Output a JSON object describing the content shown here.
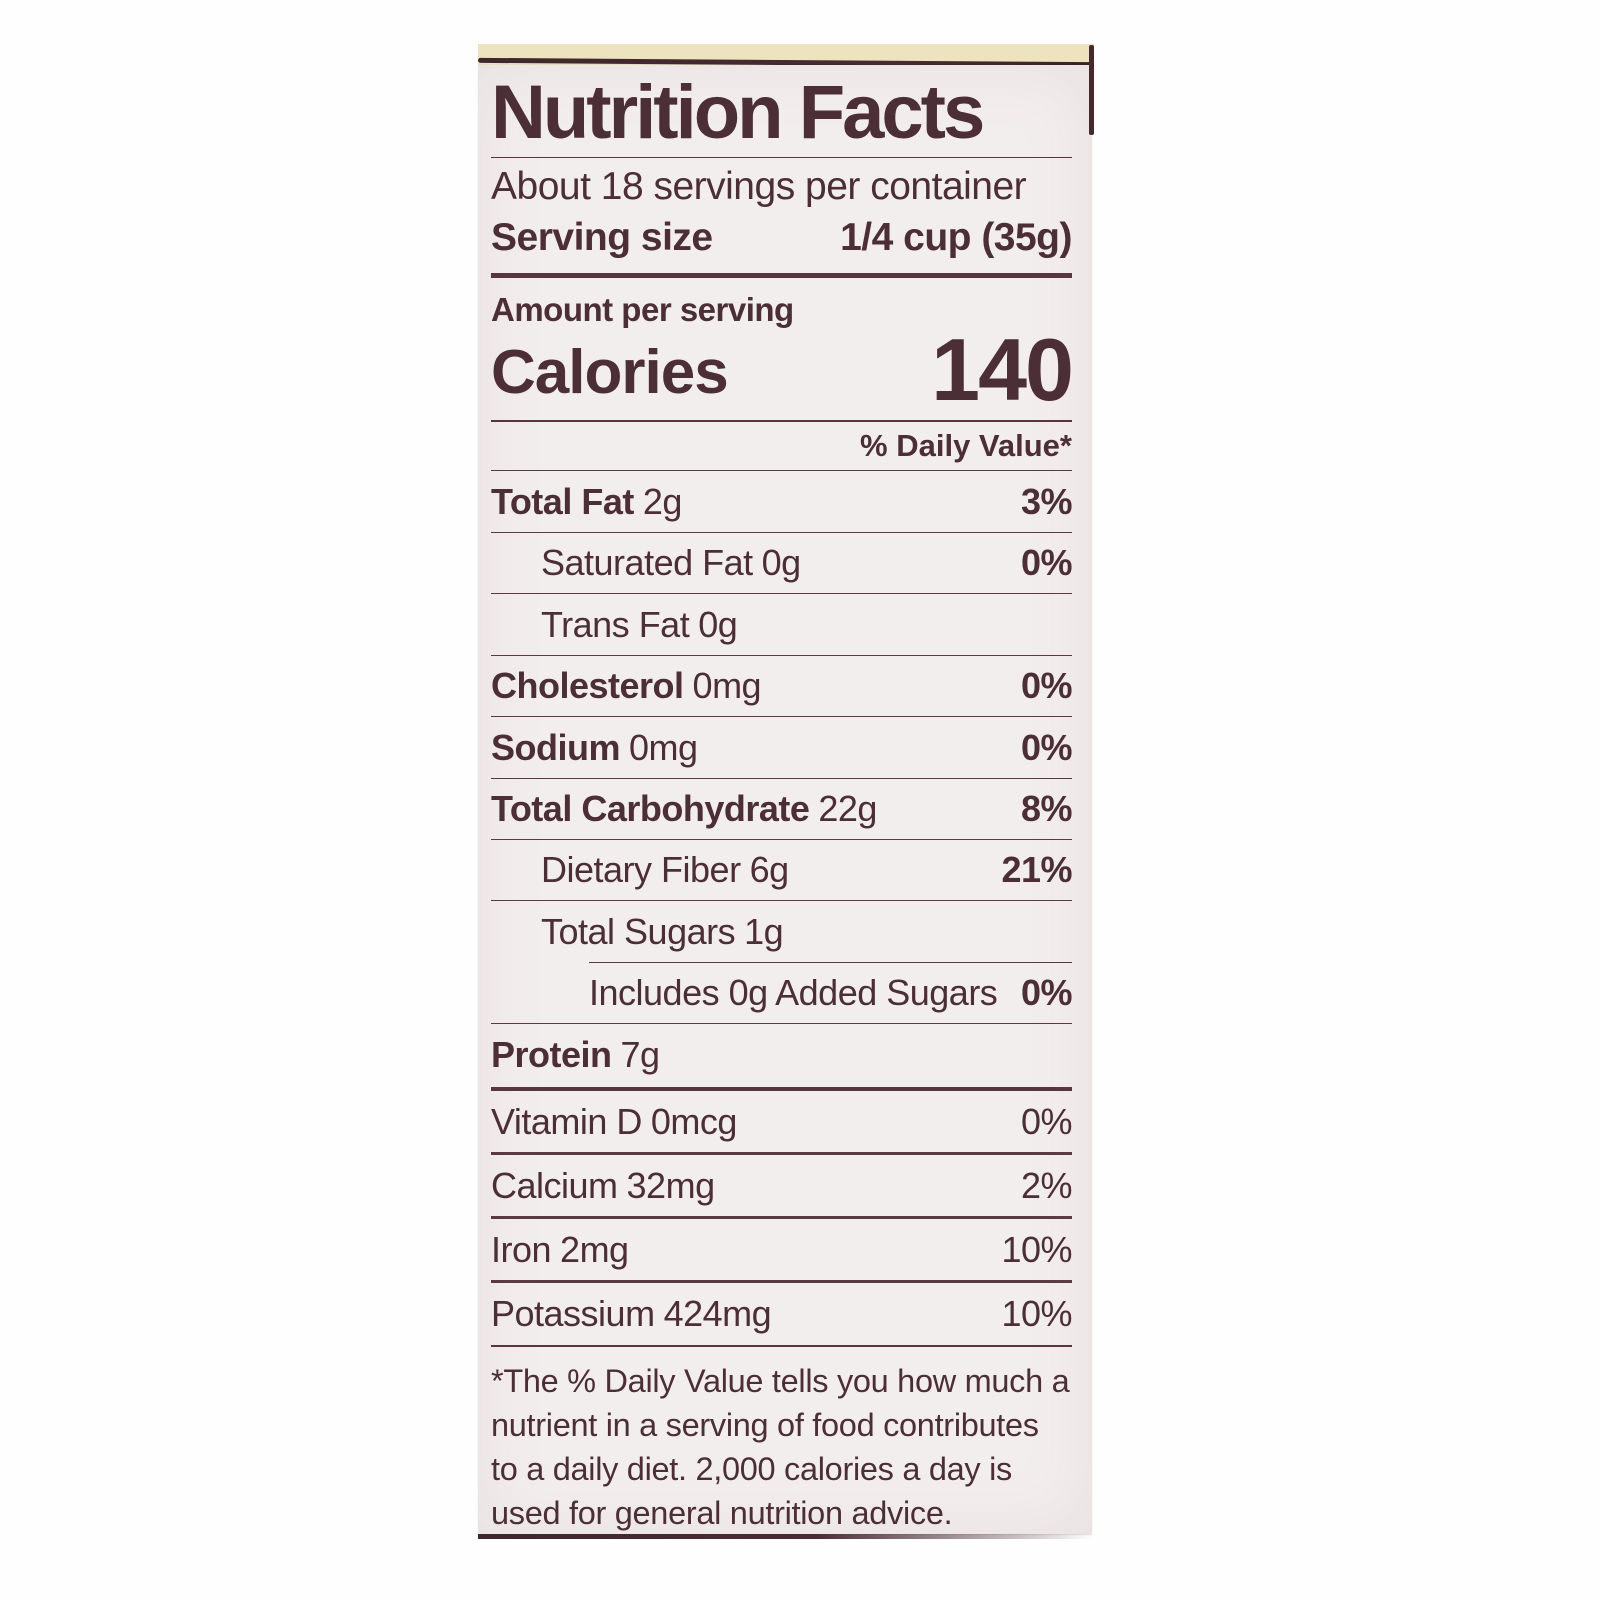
{
  "label": {
    "title": "Nutrition Facts",
    "servings_per_container": "About 18 servings per container",
    "serving_size_label": "Serving size",
    "serving_size_value": "1/4 cup (35g)",
    "amount_per_serving": "Amount per serving",
    "calories_label": "Calories",
    "calories_value": "140",
    "daily_value_header": "% Daily Value*",
    "nutrients": [
      {
        "name": "Total Fat",
        "amount": "2g",
        "dv": "3%"
      },
      {
        "name": "Saturated Fat",
        "amount": "0g",
        "dv": "0%"
      },
      {
        "name": "Trans Fat",
        "amount": "0g",
        "dv": ""
      },
      {
        "name": "Cholesterol",
        "amount": "0mg",
        "dv": "0%"
      },
      {
        "name": "Sodium",
        "amount": "0mg",
        "dv": "0%"
      },
      {
        "name": "Total Carbohydrate",
        "amount": "22g",
        "dv": "8%"
      },
      {
        "name": "Dietary Fiber",
        "amount": "6g",
        "dv": "21%"
      },
      {
        "name": "Total Sugars",
        "amount": "1g",
        "dv": ""
      },
      {
        "name": "Includes 0g Added Sugars",
        "amount": "",
        "dv": "0%"
      },
      {
        "name": "Protein",
        "amount": "7g",
        "dv": ""
      }
    ],
    "micronutrients": [
      {
        "name": "Vitamin D",
        "amount": "0mcg",
        "dv": "0%"
      },
      {
        "name": "Calcium",
        "amount": "32mg",
        "dv": "2%"
      },
      {
        "name": "Iron",
        "amount": "2mg",
        "dv": "10%"
      },
      {
        "name": "Potassium",
        "amount": "424mg",
        "dv": "10%"
      }
    ],
    "footnote": "*The % Daily Value tells you how much a nutrient in a serving of food contributes to a daily diet. 2,000 calories a day is used for general nutrition advice."
  },
  "colors": {
    "ink": "#4c2e36",
    "bar": "#583640",
    "label_background": "#f3eeee",
    "package_cream": "#ede3bf",
    "page_background": "#fefefe"
  }
}
